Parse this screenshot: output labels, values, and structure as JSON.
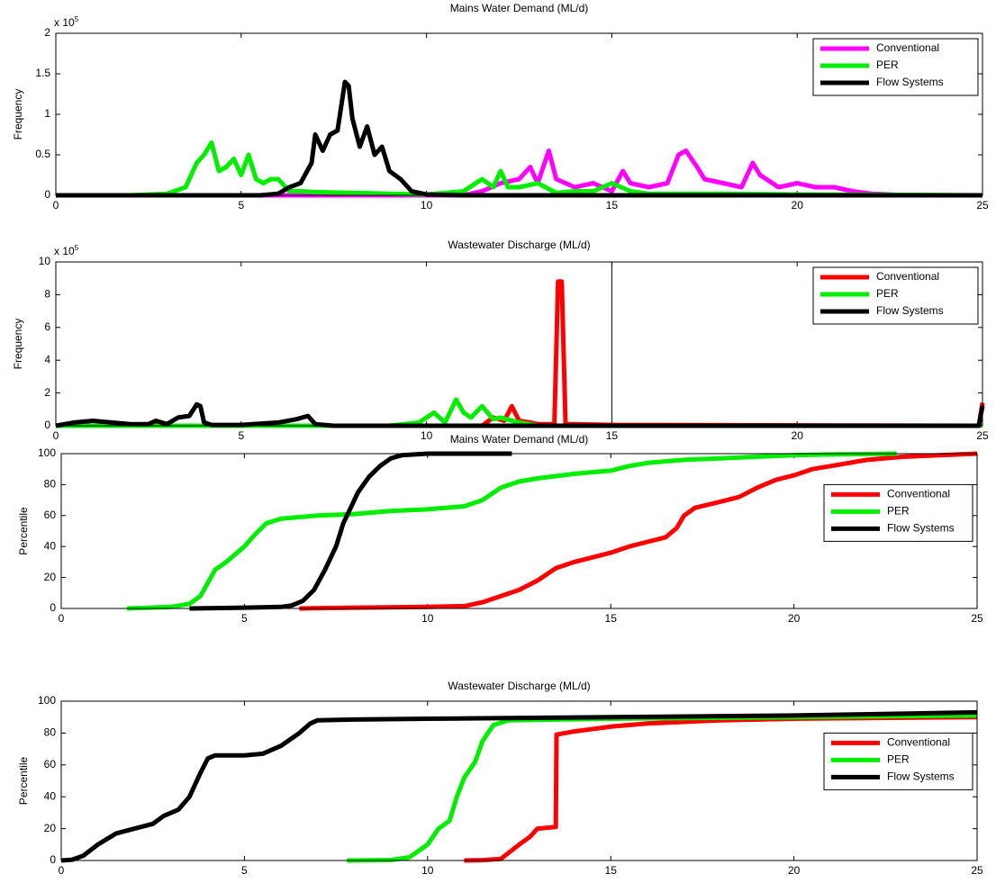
{
  "chart_data": [
    {
      "type": "line",
      "title": "Mains Water Demand (ML/d)",
      "y_label": "Frequency",
      "y_multiplier": {
        "base": "x 10",
        "exponent": "5"
      },
      "xlim": [
        0,
        25
      ],
      "xticks": [
        0,
        5,
        10,
        15,
        20,
        25
      ],
      "ylim": [
        0,
        2
      ],
      "yticks": [
        0,
        0.5,
        1,
        1.5,
        2
      ],
      "legend": "upper right",
      "series": [
        {
          "name": "Conventional",
          "color": "#ff00ff",
          "x": [
            0,
            11,
            11.5,
            12,
            12.5,
            12.8,
            13,
            13.3,
            13.5,
            14,
            14.5,
            15,
            15.3,
            15.5,
            16,
            16.5,
            16.8,
            17,
            17.3,
            17.5,
            18,
            18.5,
            18.8,
            19,
            19.5,
            20,
            20.5,
            21,
            21.5,
            22,
            22.5,
            23,
            25
          ],
          "values": [
            0,
            0,
            0.05,
            0.15,
            0.2,
            0.35,
            0.15,
            0.55,
            0.2,
            0.1,
            0.15,
            0.05,
            0.3,
            0.15,
            0.1,
            0.15,
            0.5,
            0.55,
            0.35,
            0.2,
            0.15,
            0.1,
            0.4,
            0.25,
            0.1,
            0.15,
            0.1,
            0.1,
            0.05,
            0.02,
            0.01,
            0,
            0
          ]
        },
        {
          "name": "PER",
          "color": "#00ee00",
          "x": [
            0,
            2,
            3,
            3.5,
            3.8,
            4.0,
            4.2,
            4.4,
            4.6,
            4.8,
            5.0,
            5.2,
            5.4,
            5.6,
            5.8,
            6.0,
            6.3,
            6.6,
            7,
            8,
            9,
            10,
            11,
            11.5,
            11.8,
            12,
            12.2,
            12.5,
            13,
            13.5,
            14,
            14.5,
            15,
            15.5,
            16,
            18,
            20,
            25
          ],
          "values": [
            0,
            0,
            0.02,
            0.1,
            0.4,
            0.5,
            0.65,
            0.3,
            0.35,
            0.45,
            0.25,
            0.5,
            0.2,
            0.15,
            0.2,
            0.2,
            0.05,
            0.05,
            0.04,
            0.03,
            0.02,
            0.01,
            0.05,
            0.2,
            0.1,
            0.3,
            0.1,
            0.1,
            0.15,
            0.03,
            0.05,
            0.05,
            0.15,
            0.05,
            0.02,
            0.02,
            0.01,
            0
          ]
        },
        {
          "name": "Flow Systems",
          "color": "#000000",
          "x": [
            0,
            5.5,
            6,
            6.3,
            6.6,
            6.9,
            7.0,
            7.2,
            7.4,
            7.6,
            7.8,
            7.9,
            8.0,
            8.2,
            8.4,
            8.6,
            8.8,
            9.0,
            9.3,
            9.6,
            10,
            11,
            25
          ],
          "values": [
            0,
            0,
            0.02,
            0.1,
            0.15,
            0.4,
            0.75,
            0.55,
            0.75,
            0.8,
            1.4,
            1.35,
            0.95,
            0.6,
            0.85,
            0.5,
            0.6,
            0.3,
            0.2,
            0.05,
            0.01,
            0,
            0
          ]
        }
      ]
    },
    {
      "type": "line",
      "title": "Wastewater Discharge (ML/d)",
      "y_label": "Frequency",
      "y_multiplier": {
        "base": "x 10",
        "exponent": "5"
      },
      "xlim": [
        0,
        25
      ],
      "xticks": [
        0,
        5,
        10,
        15,
        20,
        25
      ],
      "ylim": [
        0,
        10
      ],
      "yticks": [
        0,
        2,
        4,
        6,
        8,
        10
      ],
      "legend": "upper right",
      "vlines": [
        15
      ],
      "series": [
        {
          "name": "Conventional",
          "color": "#ff0000",
          "x": [
            0,
            11.5,
            11.8,
            12.1,
            12.3,
            12.5,
            12.8,
            13,
            13.45,
            13.55,
            13.65,
            13.75,
            14,
            15,
            24.9,
            25
          ],
          "values": [
            0,
            0,
            0.5,
            0.3,
            1.2,
            0.3,
            0.2,
            0.1,
            0.1,
            8.8,
            8.8,
            0.1,
            0.1,
            0.05,
            0,
            1.4
          ]
        },
        {
          "name": "PER",
          "color": "#00ee00",
          "x": [
            0,
            9,
            9.8,
            10.2,
            10.5,
            10.8,
            11,
            11.2,
            11.5,
            11.8,
            12,
            12.5,
            13,
            25
          ],
          "values": [
            0,
            0,
            0.2,
            0.8,
            0.2,
            1.6,
            0.8,
            0.5,
            1.2,
            0.4,
            0.5,
            0.2,
            0,
            0
          ]
        },
        {
          "name": "Flow Systems",
          "color": "#000000",
          "x": [
            0,
            0.5,
            1,
            1.5,
            2,
            2.5,
            2.7,
            3,
            3.3,
            3.6,
            3.8,
            3.9,
            4.0,
            4.2,
            5,
            6,
            6.5,
            6.8,
            7,
            7.5,
            10,
            24.9,
            25
          ],
          "values": [
            0,
            0.2,
            0.3,
            0.2,
            0.1,
            0.1,
            0.3,
            0.1,
            0.5,
            0.6,
            1.3,
            1.2,
            0.2,
            0.05,
            0.05,
            0.2,
            0.4,
            0.6,
            0.1,
            0,
            0,
            0,
            1.2
          ]
        }
      ]
    },
    {
      "type": "line",
      "title": "Mains Water Demand (ML/d)",
      "y_label": "Percentile",
      "xlim": [
        0,
        25
      ],
      "xticks": [
        0,
        5,
        10,
        15,
        20,
        25
      ],
      "ylim": [
        0,
        100
      ],
      "yticks": [
        0,
        20,
        40,
        60,
        80,
        100
      ],
      "legend": "right",
      "series": [
        {
          "name": "Conventional",
          "color": "#ff0000",
          "x": [
            6.5,
            8,
            10,
            11,
            11.5,
            12,
            12.5,
            13,
            13.5,
            14,
            15,
            15.5,
            16,
            16.5,
            16.8,
            17,
            17.3,
            18,
            18.5,
            19,
            19.5,
            20,
            20.5,
            21,
            22,
            23,
            25
          ],
          "values": [
            0,
            0.5,
            1,
            1.5,
            4,
            8,
            12,
            18,
            26,
            30,
            36,
            40,
            43,
            46,
            52,
            60,
            65,
            69,
            72,
            78,
            83,
            86,
            90,
            92,
            96,
            98,
            100
          ]
        },
        {
          "name": "PER",
          "color": "#00ee00",
          "x": [
            1.8,
            3,
            3.5,
            3.8,
            4.2,
            4.5,
            5,
            5.3,
            5.6,
            6,
            7,
            8,
            9,
            10,
            11,
            11.5,
            12,
            12.5,
            13,
            14,
            15,
            15.5,
            16,
            17,
            18,
            19,
            20,
            21,
            22.8
          ],
          "values": [
            0,
            1,
            3,
            8,
            25,
            30,
            40,
            48,
            55,
            58,
            60,
            61,
            63,
            64,
            66,
            70,
            78,
            82,
            84,
            87,
            89,
            92,
            94,
            96,
            97,
            98,
            99,
            99.5,
            100
          ]
        },
        {
          "name": "Flow Systems",
          "color": "#000000",
          "x": [
            3.5,
            5,
            6,
            6.3,
            6.6,
            6.9,
            7.2,
            7.5,
            7.7,
            7.9,
            8.1,
            8.4,
            8.7,
            9,
            9.3,
            10,
            11,
            12.3
          ],
          "values": [
            0,
            0.5,
            1,
            2,
            5,
            12,
            25,
            40,
            55,
            65,
            75,
            85,
            92,
            97,
            99,
            100,
            100,
            100
          ]
        }
      ]
    },
    {
      "type": "line",
      "title": "Wastewater Discharge (ML/d)",
      "y_label": "Percentile",
      "xlim": [
        0,
        25
      ],
      "xticks": [
        0,
        5,
        10,
        15,
        20,
        25
      ],
      "ylim": [
        0,
        100
      ],
      "yticks": [
        0,
        20,
        40,
        60,
        80,
        100
      ],
      "legend": "right",
      "series": [
        {
          "name": "Conventional",
          "color": "#ff0000",
          "x": [
            11,
            11.5,
            12,
            12.5,
            12.8,
            13,
            13.5,
            13.52,
            14,
            15,
            16,
            18,
            20,
            25
          ],
          "values": [
            0,
            0.2,
            1,
            10,
            15,
            20,
            21,
            79,
            81,
            84,
            86,
            88,
            89,
            90
          ]
        },
        {
          "name": "PER",
          "color": "#00ee00",
          "x": [
            7.8,
            9,
            9.5,
            10,
            10.3,
            10.6,
            10.8,
            11,
            11.3,
            11.5,
            11.8,
            12.2,
            15,
            20,
            25
          ],
          "values": [
            0,
            0.3,
            2,
            10,
            20,
            25,
            40,
            52,
            62,
            75,
            85,
            88,
            89,
            90,
            91
          ]
        },
        {
          "name": "Flow Systems",
          "color": "#000000",
          "x": [
            0,
            0.3,
            0.6,
            1,
            1.5,
            2,
            2.5,
            2.8,
            3.2,
            3.5,
            3.8,
            4,
            4.2,
            4.5,
            5,
            5.5,
            6,
            6.5,
            6.8,
            7,
            8,
            10,
            15,
            20,
            25
          ],
          "values": [
            0,
            0.5,
            3,
            10,
            17,
            20,
            23,
            28,
            32,
            40,
            55,
            64,
            66,
            66,
            66,
            67,
            72,
            80,
            86,
            88,
            88.5,
            89,
            90,
            91,
            93
          ]
        }
      ]
    }
  ]
}
